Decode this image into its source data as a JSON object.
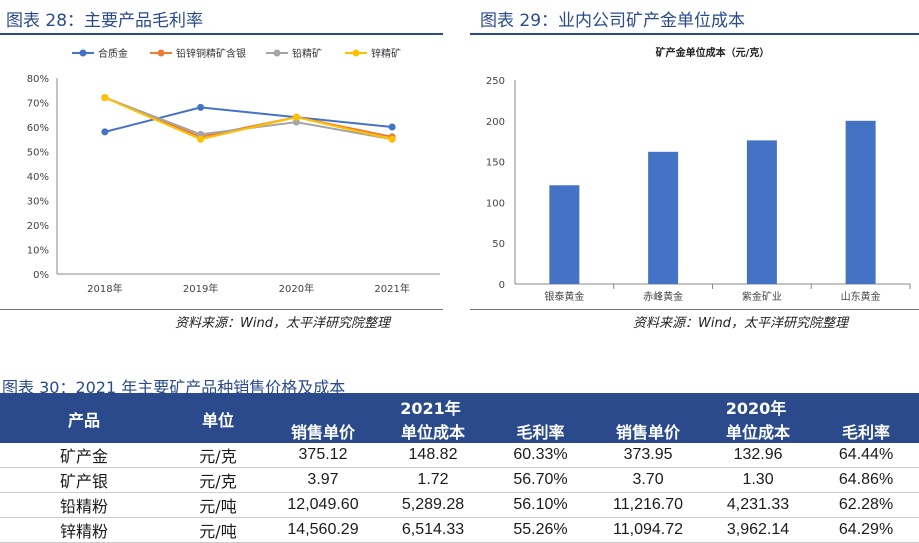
{
  "left_panel": {
    "title": "图表 28：主要产品毛利率",
    "source": "资料来源：Wind，太平洋研究院整理"
  },
  "right_panel": {
    "title": "图表 29：业内公司矿产金单位成本",
    "source": "资料来源：Wind，太平洋研究院整理"
  },
  "table": {
    "title": "图表 30：2021 年主要矿产品种销售价格及成本",
    "headers": {
      "product": "产品",
      "unit": "单位",
      "year_2021": "2021年",
      "year_2020": "2020年",
      "price": "销售单价",
      "cost": "单位成本",
      "margin": "毛利率"
    },
    "rows": [
      {
        "product": "矿产金",
        "unit": "元/克",
        "p21": "375.12",
        "c21": "148.82",
        "m21": "60.33%",
        "p20": "373.95",
        "c20": "132.96",
        "m20": "64.44%"
      },
      {
        "product": "矿产银",
        "unit": "元/克",
        "p21": "3.97",
        "c21": "1.72",
        "m21": "56.70%",
        "p20": "3.70",
        "c20": "1.30",
        "m20": "64.86%"
      },
      {
        "product": "铅精粉",
        "unit": "元/吨",
        "p21": "12,049.60",
        "c21": "5,289.28",
        "m21": "56.10%",
        "p20": "11,216.70",
        "c20": "4,231.33",
        "m20": "62.28%"
      },
      {
        "product": "锌精粉",
        "unit": "元/吨",
        "p21": "14,560.29",
        "c21": "6,514.33",
        "m21": "55.26%",
        "p20": "11,094.72",
        "c20": "3,962.14",
        "m20": "64.29%"
      }
    ]
  },
  "chart_data": [
    {
      "type": "line",
      "title": "",
      "categories": [
        "2018年",
        "2019年",
        "2020年",
        "2021年"
      ],
      "ylim": [
        0,
        80
      ],
      "yticks": [
        "0%",
        "10%",
        "20%",
        "30%",
        "40%",
        "50%",
        "60%",
        "70%",
        "80%"
      ],
      "legend_position": "top",
      "series": [
        {
          "name": "合质金",
          "color": "#4472c4",
          "values": [
            58,
            68,
            64,
            60
          ]
        },
        {
          "name": "铅锌铜精矿含银",
          "color": "#ed7d31",
          "values": [
            72,
            56,
            64,
            56
          ]
        },
        {
          "name": "铅精矿",
          "color": "#a5a5a5",
          "values": [
            72,
            57,
            62,
            55
          ]
        },
        {
          "name": "锌精矿",
          "color": "#ffc000",
          "values": [
            72,
            55,
            64,
            55
          ]
        }
      ]
    },
    {
      "type": "bar",
      "title": "矿产金单位成本（元/克）",
      "categories": [
        "银泰黄金",
        "赤峰黄金",
        "紫金矿业",
        "山东黄金"
      ],
      "values": [
        121,
        162,
        176,
        200
      ],
      "ylim": [
        0,
        250
      ],
      "yticks": [
        "0",
        "50",
        "100",
        "150",
        "200",
        "250"
      ],
      "bar_color": "#4472c4"
    }
  ]
}
